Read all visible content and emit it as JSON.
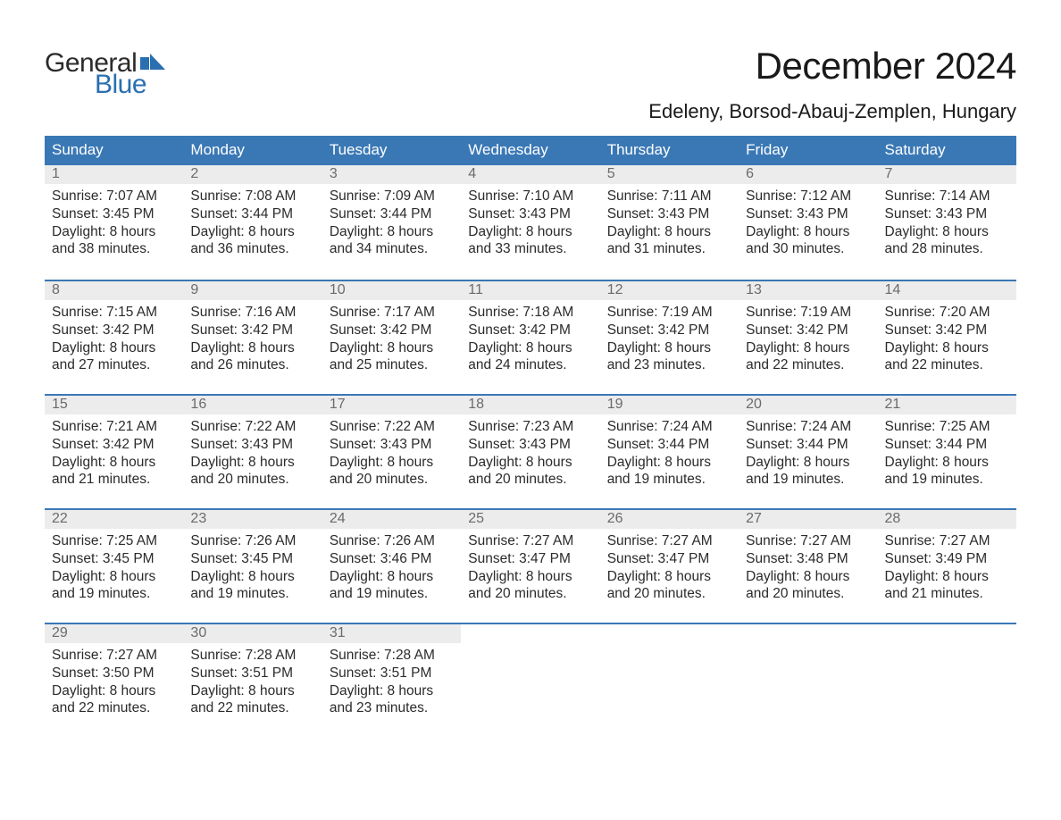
{
  "brand": {
    "word1": "General",
    "word2": "Blue",
    "accent_color": "#2a6fb0",
    "text_color": "#2b2b2b"
  },
  "colors": {
    "header_bg": "#3a78b5",
    "header_text": "#ffffff",
    "daynum_bg": "#ececec",
    "daynum_text": "#6b6b6b",
    "body_text": "#2b2b2b",
    "page_bg": "#ffffff",
    "week_border": "#3a78b5"
  },
  "title": "December 2024",
  "location": "Edeleny, Borsod-Abauj-Zemplen, Hungary",
  "weekdays": [
    "Sunday",
    "Monday",
    "Tuesday",
    "Wednesday",
    "Thursday",
    "Friday",
    "Saturday"
  ],
  "weeks": [
    [
      {
        "n": "1",
        "sunrise": "Sunrise: 7:07 AM",
        "sunset": "Sunset: 3:45 PM",
        "d1": "Daylight: 8 hours",
        "d2": "and 38 minutes."
      },
      {
        "n": "2",
        "sunrise": "Sunrise: 7:08 AM",
        "sunset": "Sunset: 3:44 PM",
        "d1": "Daylight: 8 hours",
        "d2": "and 36 minutes."
      },
      {
        "n": "3",
        "sunrise": "Sunrise: 7:09 AM",
        "sunset": "Sunset: 3:44 PM",
        "d1": "Daylight: 8 hours",
        "d2": "and 34 minutes."
      },
      {
        "n": "4",
        "sunrise": "Sunrise: 7:10 AM",
        "sunset": "Sunset: 3:43 PM",
        "d1": "Daylight: 8 hours",
        "d2": "and 33 minutes."
      },
      {
        "n": "5",
        "sunrise": "Sunrise: 7:11 AM",
        "sunset": "Sunset: 3:43 PM",
        "d1": "Daylight: 8 hours",
        "d2": "and 31 minutes."
      },
      {
        "n": "6",
        "sunrise": "Sunrise: 7:12 AM",
        "sunset": "Sunset: 3:43 PM",
        "d1": "Daylight: 8 hours",
        "d2": "and 30 minutes."
      },
      {
        "n": "7",
        "sunrise": "Sunrise: 7:14 AM",
        "sunset": "Sunset: 3:43 PM",
        "d1": "Daylight: 8 hours",
        "d2": "and 28 minutes."
      }
    ],
    [
      {
        "n": "8",
        "sunrise": "Sunrise: 7:15 AM",
        "sunset": "Sunset: 3:42 PM",
        "d1": "Daylight: 8 hours",
        "d2": "and 27 minutes."
      },
      {
        "n": "9",
        "sunrise": "Sunrise: 7:16 AM",
        "sunset": "Sunset: 3:42 PM",
        "d1": "Daylight: 8 hours",
        "d2": "and 26 minutes."
      },
      {
        "n": "10",
        "sunrise": "Sunrise: 7:17 AM",
        "sunset": "Sunset: 3:42 PM",
        "d1": "Daylight: 8 hours",
        "d2": "and 25 minutes."
      },
      {
        "n": "11",
        "sunrise": "Sunrise: 7:18 AM",
        "sunset": "Sunset: 3:42 PM",
        "d1": "Daylight: 8 hours",
        "d2": "and 24 minutes."
      },
      {
        "n": "12",
        "sunrise": "Sunrise: 7:19 AM",
        "sunset": "Sunset: 3:42 PM",
        "d1": "Daylight: 8 hours",
        "d2": "and 23 minutes."
      },
      {
        "n": "13",
        "sunrise": "Sunrise: 7:19 AM",
        "sunset": "Sunset: 3:42 PM",
        "d1": "Daylight: 8 hours",
        "d2": "and 22 minutes."
      },
      {
        "n": "14",
        "sunrise": "Sunrise: 7:20 AM",
        "sunset": "Sunset: 3:42 PM",
        "d1": "Daylight: 8 hours",
        "d2": "and 22 minutes."
      }
    ],
    [
      {
        "n": "15",
        "sunrise": "Sunrise: 7:21 AM",
        "sunset": "Sunset: 3:42 PM",
        "d1": "Daylight: 8 hours",
        "d2": "and 21 minutes."
      },
      {
        "n": "16",
        "sunrise": "Sunrise: 7:22 AM",
        "sunset": "Sunset: 3:43 PM",
        "d1": "Daylight: 8 hours",
        "d2": "and 20 minutes."
      },
      {
        "n": "17",
        "sunrise": "Sunrise: 7:22 AM",
        "sunset": "Sunset: 3:43 PM",
        "d1": "Daylight: 8 hours",
        "d2": "and 20 minutes."
      },
      {
        "n": "18",
        "sunrise": "Sunrise: 7:23 AM",
        "sunset": "Sunset: 3:43 PM",
        "d1": "Daylight: 8 hours",
        "d2": "and 20 minutes."
      },
      {
        "n": "19",
        "sunrise": "Sunrise: 7:24 AM",
        "sunset": "Sunset: 3:44 PM",
        "d1": "Daylight: 8 hours",
        "d2": "and 19 minutes."
      },
      {
        "n": "20",
        "sunrise": "Sunrise: 7:24 AM",
        "sunset": "Sunset: 3:44 PM",
        "d1": "Daylight: 8 hours",
        "d2": "and 19 minutes."
      },
      {
        "n": "21",
        "sunrise": "Sunrise: 7:25 AM",
        "sunset": "Sunset: 3:44 PM",
        "d1": "Daylight: 8 hours",
        "d2": "and 19 minutes."
      }
    ],
    [
      {
        "n": "22",
        "sunrise": "Sunrise: 7:25 AM",
        "sunset": "Sunset: 3:45 PM",
        "d1": "Daylight: 8 hours",
        "d2": "and 19 minutes."
      },
      {
        "n": "23",
        "sunrise": "Sunrise: 7:26 AM",
        "sunset": "Sunset: 3:45 PM",
        "d1": "Daylight: 8 hours",
        "d2": "and 19 minutes."
      },
      {
        "n": "24",
        "sunrise": "Sunrise: 7:26 AM",
        "sunset": "Sunset: 3:46 PM",
        "d1": "Daylight: 8 hours",
        "d2": "and 19 minutes."
      },
      {
        "n": "25",
        "sunrise": "Sunrise: 7:27 AM",
        "sunset": "Sunset: 3:47 PM",
        "d1": "Daylight: 8 hours",
        "d2": "and 20 minutes."
      },
      {
        "n": "26",
        "sunrise": "Sunrise: 7:27 AM",
        "sunset": "Sunset: 3:47 PM",
        "d1": "Daylight: 8 hours",
        "d2": "and 20 minutes."
      },
      {
        "n": "27",
        "sunrise": "Sunrise: 7:27 AM",
        "sunset": "Sunset: 3:48 PM",
        "d1": "Daylight: 8 hours",
        "d2": "and 20 minutes."
      },
      {
        "n": "28",
        "sunrise": "Sunrise: 7:27 AM",
        "sunset": "Sunset: 3:49 PM",
        "d1": "Daylight: 8 hours",
        "d2": "and 21 minutes."
      }
    ],
    [
      {
        "n": "29",
        "sunrise": "Sunrise: 7:27 AM",
        "sunset": "Sunset: 3:50 PM",
        "d1": "Daylight: 8 hours",
        "d2": "and 22 minutes."
      },
      {
        "n": "30",
        "sunrise": "Sunrise: 7:28 AM",
        "sunset": "Sunset: 3:51 PM",
        "d1": "Daylight: 8 hours",
        "d2": "and 22 minutes."
      },
      {
        "n": "31",
        "sunrise": "Sunrise: 7:28 AM",
        "sunset": "Sunset: 3:51 PM",
        "d1": "Daylight: 8 hours",
        "d2": "and 23 minutes."
      },
      {
        "empty": true
      },
      {
        "empty": true
      },
      {
        "empty": true
      },
      {
        "empty": true
      }
    ]
  ]
}
